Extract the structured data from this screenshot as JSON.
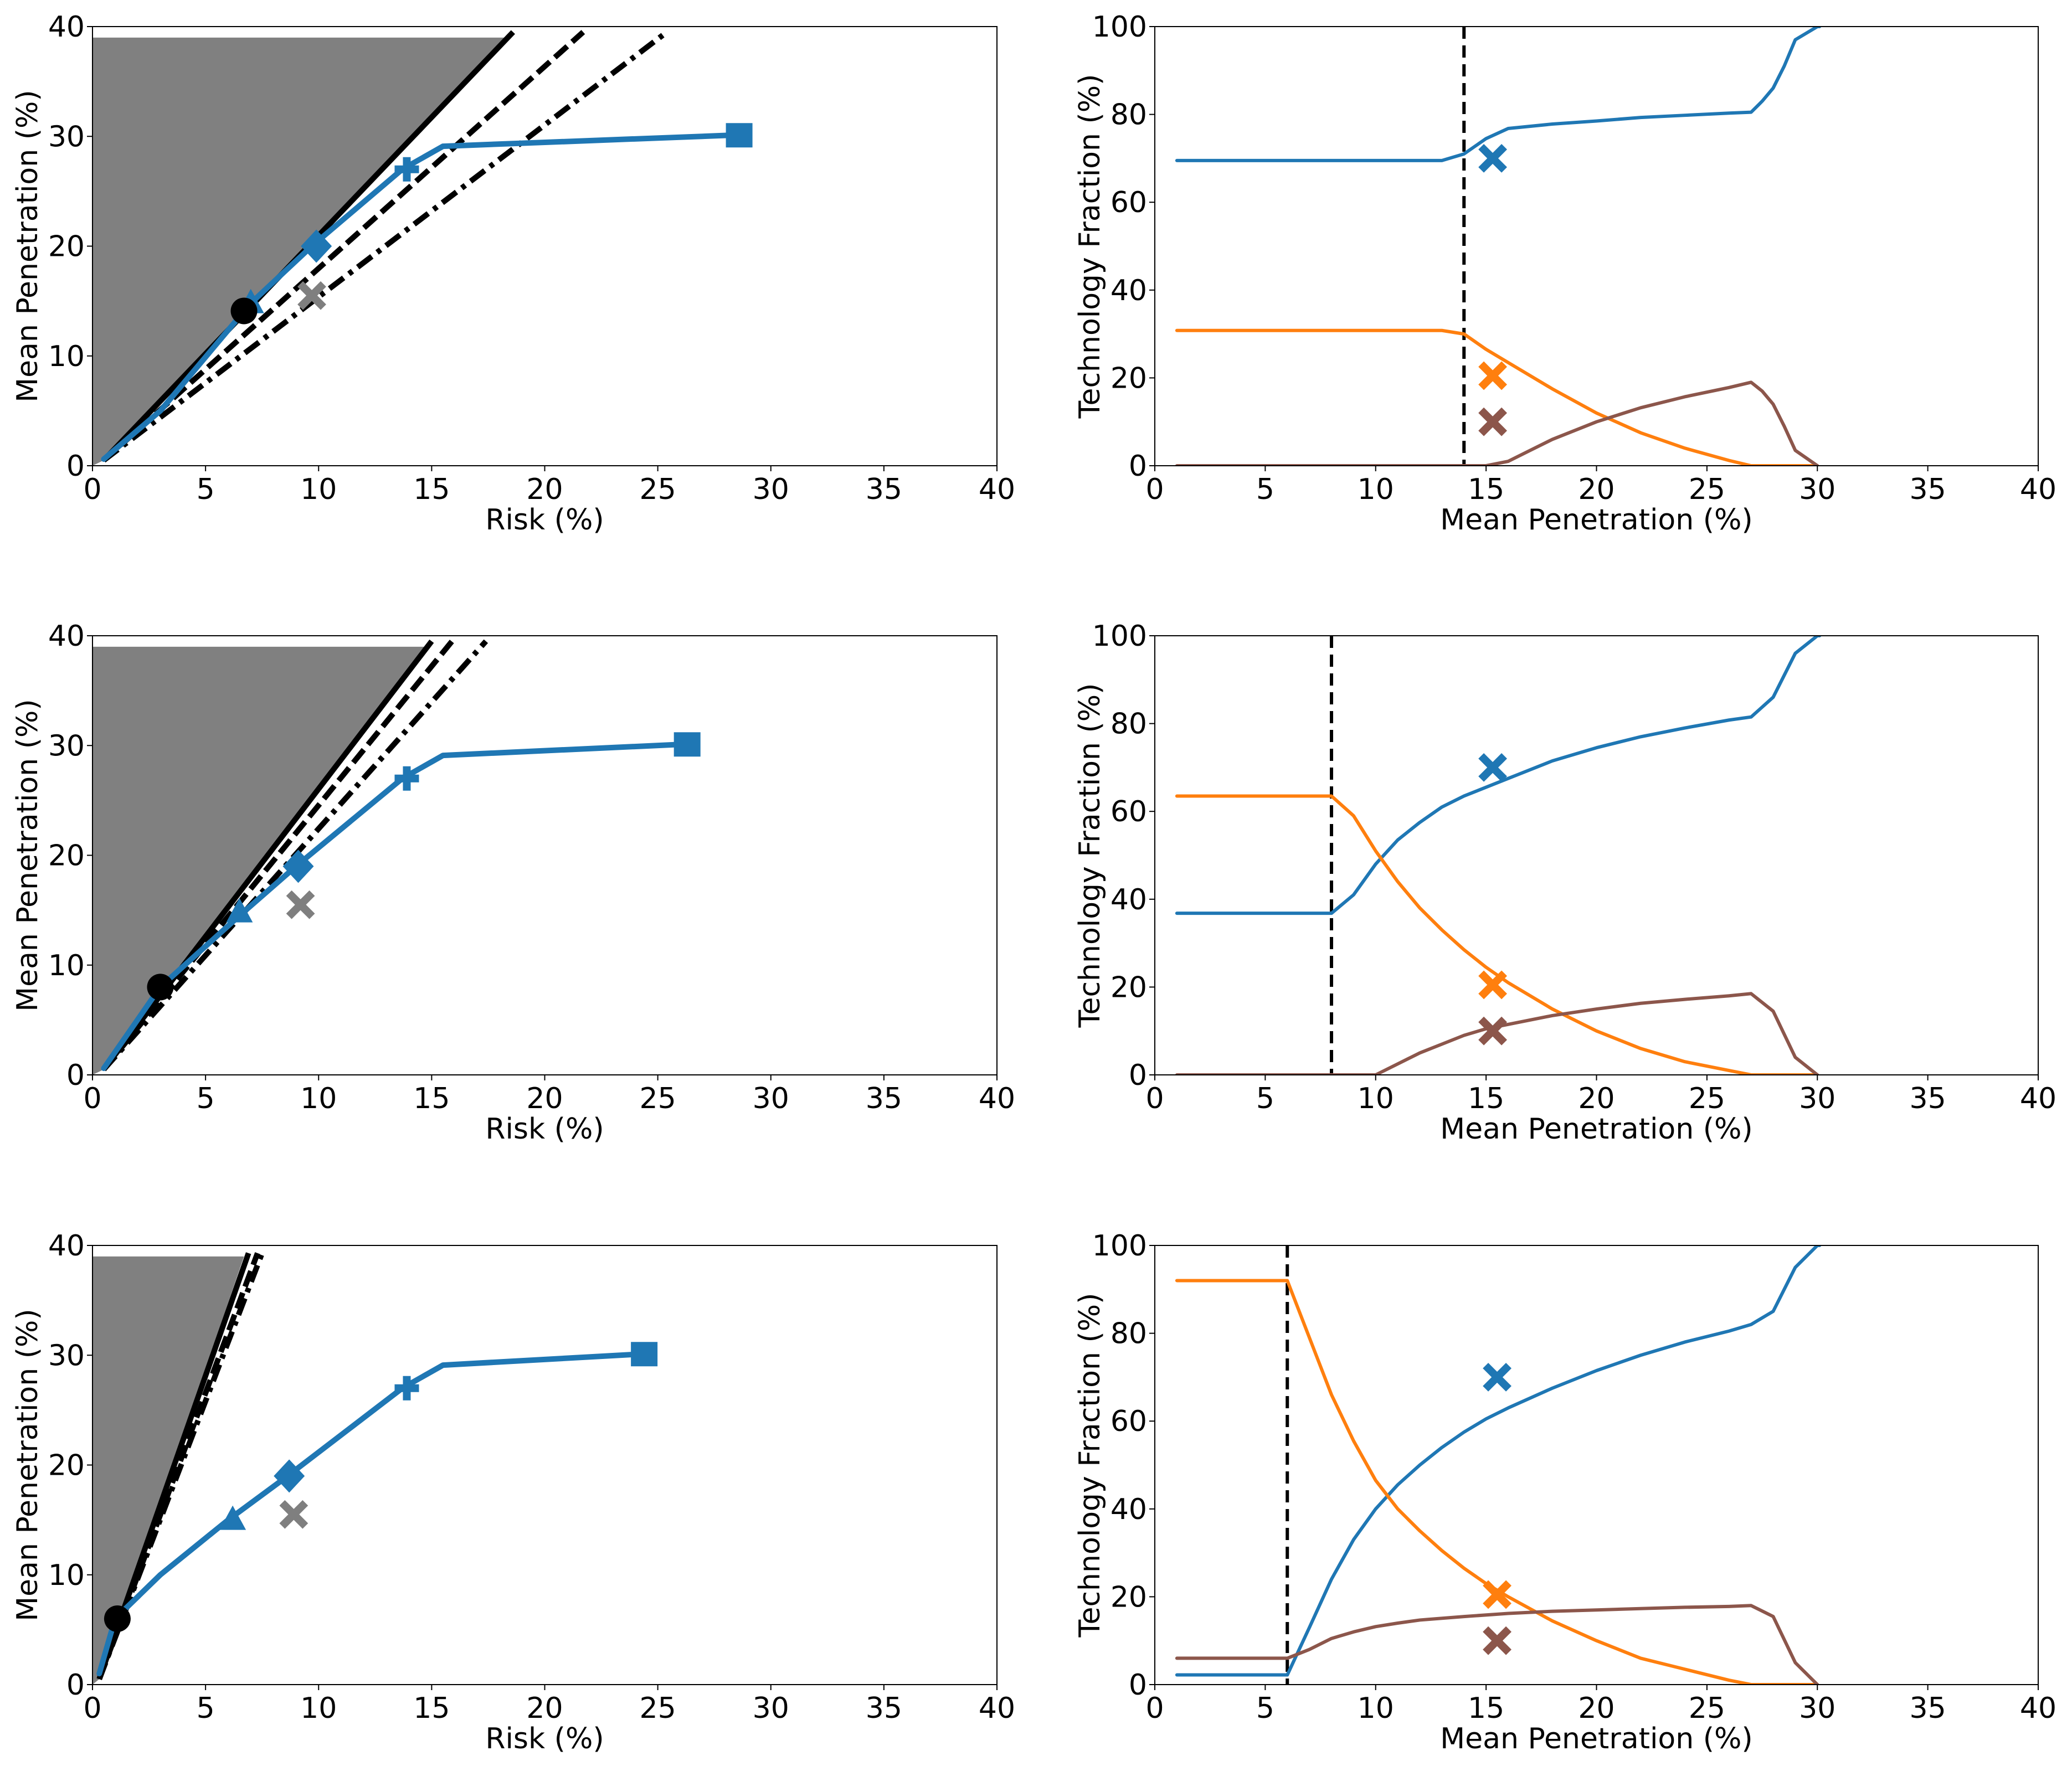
{
  "colors": {
    "blue": "#1f77b4",
    "orange": "#ff7f0e",
    "brown": "#8c564b",
    "gray": "#7f7f7f",
    "shade": "#808080",
    "black": "#000000"
  },
  "chart_data": [
    {
      "type": "line",
      "title": "",
      "xlabel": "Risk (%)",
      "ylabel": "Mean Penetration (%)",
      "xlim": [
        0,
        40
      ],
      "ylim": [
        0,
        40
      ],
      "xticks": [
        0,
        5,
        10,
        15,
        20,
        25,
        30,
        35,
        40
      ],
      "yticks": [
        0,
        10,
        20,
        30,
        40
      ],
      "shaded_region": {
        "ymax": 39,
        "apex": [
          0.5,
          0.5
        ],
        "top_right_x": 18.2
      },
      "series": [
        {
          "name": "frontier",
          "color": "blue",
          "x": [
            0.5,
            3,
            7,
            9.7,
            13.7,
            15.5,
            28.2
          ],
          "y": [
            0.6,
            5,
            14.8,
            20,
            27,
            29.1,
            30.1
          ]
        }
      ],
      "markers": [
        {
          "name": "triangle",
          "shape": "triangle",
          "color": "blue",
          "x": 7,
          "y": 14.8
        },
        {
          "name": "diamond",
          "shape": "diamond",
          "color": "blue",
          "x": 9.9,
          "y": 20
        },
        {
          "name": "plus",
          "shape": "plus",
          "color": "blue",
          "x": 13.9,
          "y": 27
        },
        {
          "name": "square",
          "shape": "square",
          "color": "blue",
          "x": 28.6,
          "y": 30.1
        },
        {
          "name": "cross",
          "shape": "x",
          "color": "gray",
          "x": 9.7,
          "y": 15.5
        },
        {
          "name": "circle",
          "shape": "circle",
          "color": "black",
          "x": 6.7,
          "y": 14.1
        }
      ],
      "ref_lines": [
        {
          "style": "solid",
          "from": [
            0.5,
            0.5
          ],
          "to": [
            18.6,
            39.5
          ]
        },
        {
          "style": "dashed",
          "from": [
            0.5,
            0.5
          ],
          "to": [
            21.7,
            39.5
          ]
        },
        {
          "style": "dashdot",
          "from": [
            0.5,
            0.5
          ],
          "to": [
            25.4,
            39.5
          ]
        }
      ]
    },
    {
      "type": "line",
      "title": "",
      "xlabel": "Mean Penetration (%)",
      "ylabel": "Technology Fraction (%)",
      "xlim": [
        0,
        40
      ],
      "ylim": [
        0,
        100
      ],
      "xticks": [
        0,
        5,
        10,
        15,
        20,
        25,
        30,
        35,
        40
      ],
      "yticks": [
        0,
        20,
        40,
        60,
        80,
        100
      ],
      "vline": 14,
      "series": [
        {
          "name": "blue",
          "color": "blue",
          "x": [
            1,
            13,
            14,
            15,
            16,
            18,
            20,
            22,
            24,
            26,
            27,
            27.5,
            28,
            28.5,
            29,
            30,
            30.1
          ],
          "y": [
            69.5,
            69.5,
            71,
            74.5,
            76.8,
            77.8,
            78.5,
            79.3,
            79.8,
            80.3,
            80.5,
            83,
            86,
            91,
            97,
            100,
            100
          ]
        },
        {
          "name": "orange",
          "color": "orange",
          "x": [
            1,
            13,
            14,
            15,
            16,
            18,
            20,
            22,
            24,
            26,
            27,
            30
          ],
          "y": [
            30.8,
            30.8,
            30,
            26.5,
            23.5,
            17.5,
            12,
            7.5,
            4,
            1.2,
            0,
            0
          ]
        },
        {
          "name": "brown",
          "color": "brown",
          "x": [
            1,
            15,
            16,
            17,
            18,
            20,
            22,
            24,
            26,
            27,
            27.5,
            28,
            28.5,
            29,
            30
          ],
          "y": [
            0,
            0,
            1,
            3.5,
            6,
            10,
            13.2,
            15.7,
            17.8,
            19,
            17,
            14,
            9,
            3.5,
            0
          ]
        }
      ],
      "markers": [
        {
          "name": "blue-cross",
          "shape": "x",
          "color": "blue",
          "x": 15.3,
          "y": 70
        },
        {
          "name": "orange-cross",
          "shape": "x",
          "color": "orange",
          "x": 15.3,
          "y": 20.5
        },
        {
          "name": "brown-cross",
          "shape": "x",
          "color": "brown",
          "x": 15.3,
          "y": 10
        }
      ]
    },
    {
      "type": "line",
      "title": "",
      "xlabel": "Risk (%)",
      "ylabel": "Mean Penetration (%)",
      "xlim": [
        0,
        40
      ],
      "ylim": [
        0,
        40
      ],
      "xticks": [
        0,
        5,
        10,
        15,
        20,
        25,
        30,
        35,
        40
      ],
      "yticks": [
        0,
        10,
        20,
        30,
        40
      ],
      "shaded_region": {
        "ymax": 39,
        "apex": [
          0.5,
          0.5
        ],
        "top_right_x": 14.8
      },
      "series": [
        {
          "name": "frontier",
          "color": "blue",
          "x": [
            0.5,
            3,
            6.5,
            9,
            13.7,
            15.5,
            26
          ],
          "y": [
            0.6,
            8,
            14.5,
            19,
            27,
            29.1,
            30.1
          ]
        }
      ],
      "markers": [
        {
          "name": "triangle",
          "shape": "triangle",
          "color": "blue",
          "x": 6.5,
          "y": 14.8
        },
        {
          "name": "diamond",
          "shape": "diamond",
          "color": "blue",
          "x": 9.1,
          "y": 19
        },
        {
          "name": "plus",
          "shape": "plus",
          "color": "blue",
          "x": 13.9,
          "y": 27
        },
        {
          "name": "square",
          "shape": "square",
          "color": "blue",
          "x": 26.3,
          "y": 30.1
        },
        {
          "name": "cross",
          "shape": "x",
          "color": "gray",
          "x": 9.2,
          "y": 15.5
        },
        {
          "name": "circle",
          "shape": "circle",
          "color": "black",
          "x": 3,
          "y": 8
        }
      ],
      "ref_lines": [
        {
          "style": "solid",
          "from": [
            0.5,
            0.5
          ],
          "to": [
            15,
            39.5
          ]
        },
        {
          "style": "dashed",
          "from": [
            0.5,
            0.5
          ],
          "to": [
            15.9,
            39.5
          ]
        },
        {
          "style": "dashdot",
          "from": [
            0.5,
            0.5
          ],
          "to": [
            17.4,
            39.5
          ]
        }
      ]
    },
    {
      "type": "line",
      "title": "",
      "xlabel": "Mean Penetration (%)",
      "ylabel": "Technology Fraction (%)",
      "xlim": [
        0,
        40
      ],
      "ylim": [
        0,
        100
      ],
      "xticks": [
        0,
        5,
        10,
        15,
        20,
        25,
        30,
        35,
        40
      ],
      "yticks": [
        0,
        20,
        40,
        60,
        80,
        100
      ],
      "vline": 8,
      "series": [
        {
          "name": "blue",
          "color": "blue",
          "x": [
            1,
            8,
            9,
            10,
            11,
            12,
            13,
            14,
            15,
            16,
            18,
            20,
            22,
            24,
            26,
            27,
            28,
            29,
            30,
            30.1
          ],
          "y": [
            36.8,
            36.8,
            41,
            48,
            53.5,
            57.5,
            61,
            63.5,
            65.5,
            67.5,
            71.5,
            74.5,
            77,
            79,
            80.8,
            81.5,
            86,
            96,
            100,
            100
          ]
        },
        {
          "name": "orange",
          "color": "orange",
          "x": [
            1,
            8,
            9,
            10,
            11,
            12,
            13,
            14,
            15,
            16,
            18,
            20,
            22,
            24,
            26,
            27,
            30
          ],
          "y": [
            63.5,
            63.5,
            59,
            51,
            44,
            38,
            33,
            28.5,
            24.5,
            21,
            15,
            10,
            6,
            3,
            1,
            0,
            0
          ]
        },
        {
          "name": "brown",
          "color": "brown",
          "x": [
            1,
            10,
            11,
            12,
            13,
            14,
            15,
            16,
            18,
            20,
            22,
            24,
            26,
            27,
            28,
            29,
            30
          ],
          "y": [
            0,
            0,
            2.5,
            5,
            7,
            9,
            10.5,
            11.5,
            13.5,
            15,
            16.3,
            17.2,
            18,
            18.5,
            14.5,
            4,
            0
          ]
        }
      ],
      "markers": [
        {
          "name": "blue-cross",
          "shape": "x",
          "color": "blue",
          "x": 15.3,
          "y": 70
        },
        {
          "name": "orange-cross",
          "shape": "x",
          "color": "orange",
          "x": 15.3,
          "y": 20.5
        },
        {
          "name": "brown-cross",
          "shape": "x",
          "color": "brown",
          "x": 15.3,
          "y": 10
        }
      ]
    },
    {
      "type": "line",
      "title": "",
      "xlabel": "Risk (%)",
      "ylabel": "Mean Penetration (%)",
      "xlim": [
        0,
        40
      ],
      "ylim": [
        0,
        40
      ],
      "xticks": [
        0,
        5,
        10,
        15,
        20,
        25,
        30,
        35,
        40
      ],
      "yticks": [
        0,
        10,
        20,
        30,
        40
      ],
      "shaded_region": {
        "ymax": 39,
        "apex": [
          0.3,
          0.5
        ],
        "top_right_x": 6.7
      },
      "series": [
        {
          "name": "frontier",
          "color": "blue",
          "x": [
            0.3,
            1,
            3,
            6,
            8.5,
            13.7,
            15.5,
            24.2
          ],
          "y": [
            1,
            6,
            10,
            15,
            18.8,
            27,
            29.1,
            30.1
          ]
        }
      ],
      "markers": [
        {
          "name": "triangle",
          "shape": "triangle",
          "color": "blue",
          "x": 6.2,
          "y": 15
        },
        {
          "name": "diamond",
          "shape": "diamond",
          "color": "blue",
          "x": 8.7,
          "y": 19
        },
        {
          "name": "plus",
          "shape": "plus",
          "color": "blue",
          "x": 13.9,
          "y": 27
        },
        {
          "name": "square",
          "shape": "square",
          "color": "blue",
          "x": 24.4,
          "y": 30.1
        },
        {
          "name": "cross",
          "shape": "x",
          "color": "gray",
          "x": 8.9,
          "y": 15.5
        },
        {
          "name": "circle",
          "shape": "circle",
          "color": "black",
          "x": 1.1,
          "y": 6
        }
      ],
      "ref_lines": [
        {
          "style": "solid",
          "from": [
            0.3,
            0.5
          ],
          "to": [
            6.9,
            39.3
          ]
        },
        {
          "style": "dashed",
          "from": [
            0.3,
            0.5
          ],
          "to": [
            7.3,
            39.3
          ]
        },
        {
          "style": "dashdot",
          "from": [
            0.3,
            0.5
          ],
          "to": [
            7.5,
            39.3
          ]
        }
      ]
    },
    {
      "type": "line",
      "title": "",
      "xlabel": "Mean Penetration (%)",
      "ylabel": "Technology Fraction (%)",
      "xlim": [
        0,
        40
      ],
      "ylim": [
        0,
        100
      ],
      "xticks": [
        0,
        5,
        10,
        15,
        20,
        25,
        30,
        35,
        40
      ],
      "yticks": [
        0,
        20,
        40,
        60,
        80,
        100
      ],
      "vline": 6,
      "series": [
        {
          "name": "blue",
          "color": "blue",
          "x": [
            1,
            6,
            7,
            8,
            9,
            10,
            11,
            12,
            13,
            14,
            15,
            16,
            18,
            20,
            22,
            24,
            26,
            27,
            28,
            29,
            30,
            30.1
          ],
          "y": [
            2.2,
            2.2,
            13,
            24,
            33,
            40,
            45.5,
            50,
            54,
            57.5,
            60.5,
            63,
            67.5,
            71.5,
            75,
            78,
            80.5,
            82,
            85,
            95,
            100,
            100
          ]
        },
        {
          "name": "orange",
          "color": "orange",
          "x": [
            1,
            6,
            7,
            8,
            9,
            10,
            11,
            12,
            13,
            14,
            15,
            16,
            18,
            20,
            22,
            24,
            26,
            27,
            30
          ],
          "y": [
            92,
            92,
            79,
            66,
            55.5,
            46.5,
            40,
            35,
            30.5,
            26.5,
            23,
            20,
            14.5,
            10,
            6,
            3.5,
            1,
            0,
            0
          ]
        },
        {
          "name": "brown",
          "color": "brown",
          "x": [
            1,
            6,
            7,
            8,
            9,
            10,
            11,
            12,
            14,
            16,
            18,
            20,
            22,
            24,
            26,
            27,
            28,
            29,
            30
          ],
          "y": [
            6,
            6,
            8,
            10.5,
            12,
            13.2,
            14,
            14.7,
            15.5,
            16.2,
            16.7,
            17,
            17.3,
            17.6,
            17.8,
            18,
            15.5,
            5,
            0
          ]
        }
      ],
      "markers": [
        {
          "name": "blue-cross",
          "shape": "x",
          "color": "blue",
          "x": 15.5,
          "y": 70
        },
        {
          "name": "orange-cross",
          "shape": "x",
          "color": "orange",
          "x": 15.5,
          "y": 20.5
        },
        {
          "name": "brown-cross",
          "shape": "x",
          "color": "brown",
          "x": 15.5,
          "y": 10
        }
      ]
    }
  ]
}
